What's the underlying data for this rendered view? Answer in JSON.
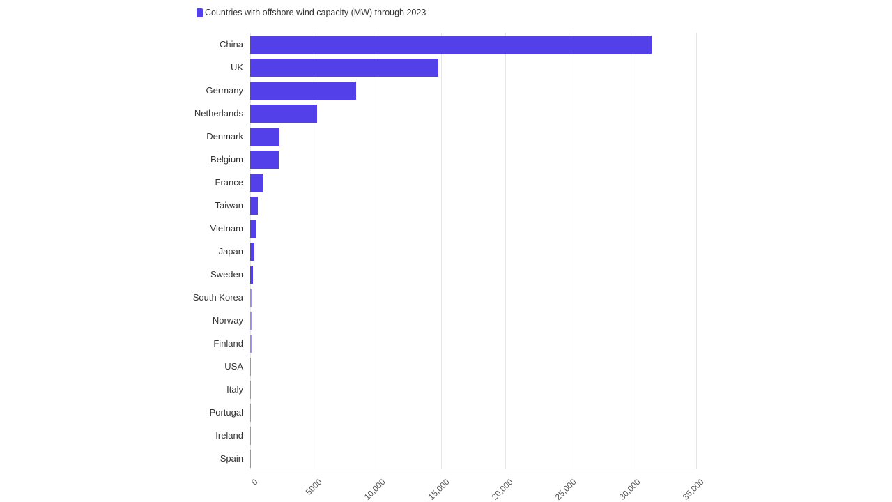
{
  "legend": {
    "label": "Countries with offshore wind capacity (MW) through 2023",
    "color": "#5340e8"
  },
  "chart_data": {
    "type": "bar",
    "orientation": "horizontal",
    "title": "Countries with offshore wind capacity (MW) through 2023",
    "xlabel": "",
    "ylabel": "",
    "xlim": [
      0,
      35000
    ],
    "grid": true,
    "legend_position": "top-left",
    "categories": [
      "China",
      "UK",
      "Germany",
      "Netherlands",
      "Denmark",
      "Belgium",
      "France",
      "Taiwan",
      "Vietnam",
      "Japan",
      "Sweden",
      "South Korea",
      "Norway",
      "Finland",
      "USA",
      "Italy",
      "Portugal",
      "Ireland",
      "Spain"
    ],
    "values": [
      31500,
      14750,
      8300,
      5250,
      2300,
      2260,
      970,
      600,
      490,
      330,
      200,
      140,
      100,
      100,
      40,
      30,
      25,
      25,
      5
    ],
    "x_ticks": [
      "0",
      "5000",
      "10,000",
      "15,000",
      "20,000",
      "25,000",
      "30,000",
      "35,000"
    ],
    "tick_values": [
      0,
      5000,
      10000,
      15000,
      20000,
      25000,
      30000,
      35000
    ]
  }
}
